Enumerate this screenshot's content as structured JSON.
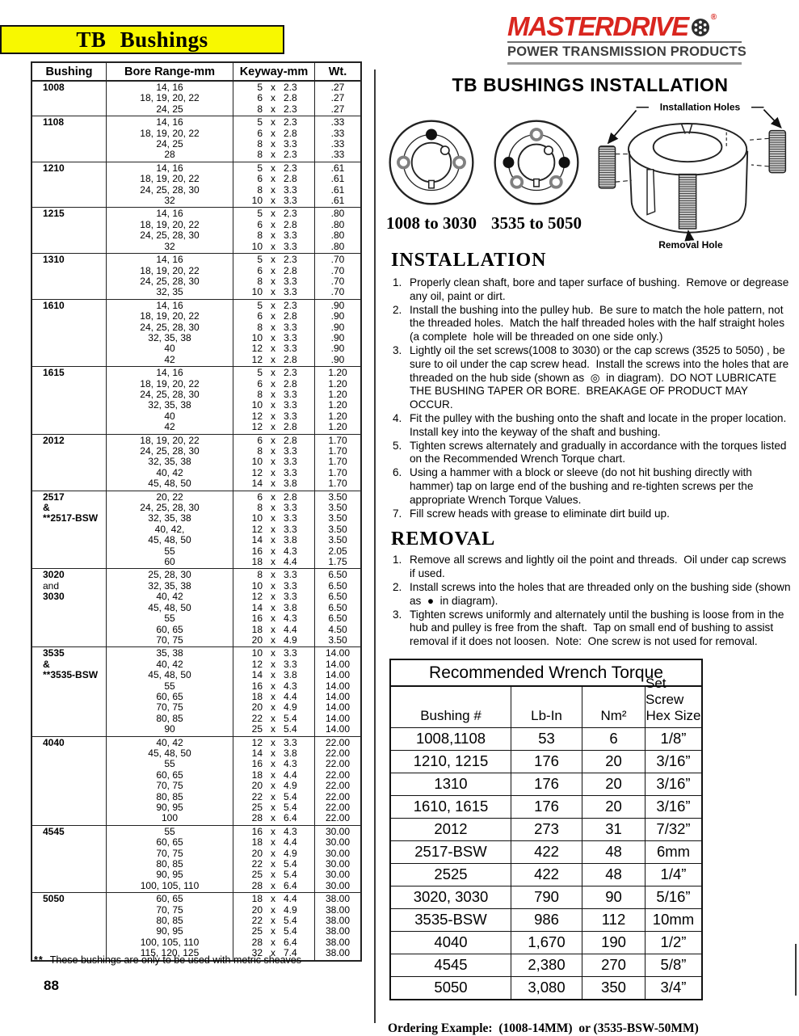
{
  "colors": {
    "banner_yellow": "#f8f800",
    "brand_red": "#d9261f",
    "brand_gray": "#3d3d3d"
  },
  "header": {
    "title": "TB Bushings",
    "brand": "MASTERDRIVE",
    "brand_reg": "®",
    "brand_sub": "POWER TRANSMISSION PRODUCTS"
  },
  "main_table": {
    "headers": [
      "Bushing",
      "Bore Range-mm",
      "Keyway-mm",
      "Wt."
    ],
    "keyway_separator": "x",
    "groups": [
      {
        "bushing": [
          "1008"
        ],
        "rows": [
          {
            "bore": "14,  16",
            "kw": "5",
            "kd": "2.3",
            "wt": ".27"
          },
          {
            "bore": "18, 19, 20, 22",
            "kw": "6",
            "kd": "2.8",
            "wt": ".27"
          },
          {
            "bore": "24, 25",
            "kw": "8",
            "kd": "2.3",
            "wt": ".27"
          }
        ]
      },
      {
        "bushing": [
          "1108"
        ],
        "rows": [
          {
            "bore": "14, 16",
            "kw": "5",
            "kd": "2.3",
            "wt": ".33"
          },
          {
            "bore": "18, 19, 20, 22",
            "kw": "6",
            "kd": "2.8",
            "wt": ".33"
          },
          {
            "bore": "24, 25",
            "kw": "8",
            "kd": "3.3",
            "wt": ".33"
          },
          {
            "bore": "28",
            "kw": "8",
            "kd": "2.3",
            "wt": ".33"
          }
        ]
      },
      {
        "bushing": [
          "1210"
        ],
        "rows": [
          {
            "bore": "14, 16",
            "kw": "5",
            "kd": "2.3",
            "wt": ".61"
          },
          {
            "bore": "18, 19, 20, 22",
            "kw": "6",
            "kd": "2.8",
            "wt": ".61"
          },
          {
            "bore": "24, 25, 28, 30",
            "kw": "8",
            "kd": "3.3",
            "wt": ".61"
          },
          {
            "bore": "32",
            "kw": "10",
            "kd": "3.3",
            "wt": ".61"
          }
        ]
      },
      {
        "bushing": [
          "1215"
        ],
        "rows": [
          {
            "bore": "14, 16",
            "kw": "5",
            "kd": "2.3",
            "wt": ".80"
          },
          {
            "bore": "18, 19, 20, 22",
            "kw": "6",
            "kd": "2.8",
            "wt": ".80"
          },
          {
            "bore": "24, 25, 28, 30",
            "kw": "8",
            "kd": "3.3",
            "wt": ".80"
          },
          {
            "bore": "32",
            "kw": "10",
            "kd": "3.3",
            "wt": ".80"
          }
        ]
      },
      {
        "bushing": [
          "1310"
        ],
        "rows": [
          {
            "bore": "14, 16",
            "kw": "5",
            "kd": "2.3",
            "wt": ".70"
          },
          {
            "bore": "18, 19, 20, 22",
            "kw": "6",
            "kd": "2.8",
            "wt": ".70"
          },
          {
            "bore": "24, 25, 28, 30",
            "kw": "8",
            "kd": "3.3",
            "wt": ".70"
          },
          {
            "bore": "32, 35",
            "kw": "10",
            "kd": "3.3",
            "wt": ".70"
          }
        ]
      },
      {
        "bushing": [
          "1610"
        ],
        "rows": [
          {
            "bore": "14, 16",
            "kw": "5",
            "kd": "2.3",
            "wt": ".90"
          },
          {
            "bore": "18, 19, 20, 22",
            "kw": "6",
            "kd": "2.8",
            "wt": ".90"
          },
          {
            "bore": "24, 25, 28, 30",
            "kw": "8",
            "kd": "3.3",
            "wt": ".90"
          },
          {
            "bore": "32, 35, 38",
            "kw": "10",
            "kd": "3.3",
            "wt": ".90"
          },
          {
            "bore": "40",
            "kw": "12",
            "kd": "3.3",
            "wt": ".90"
          },
          {
            "bore": "42",
            "kw": "12",
            "kd": "2.8",
            "wt": ".90"
          }
        ]
      },
      {
        "bushing": [
          "1615"
        ],
        "rows": [
          {
            "bore": "14, 16",
            "kw": "5",
            "kd": "2.3",
            "wt": "1.20"
          },
          {
            "bore": "18, 19, 20, 22",
            "kw": "6",
            "kd": "2.8",
            "wt": "1.20"
          },
          {
            "bore": "24, 25, 28, 30",
            "kw": "8",
            "kd": "3.3",
            "wt": "1.20"
          },
          {
            "bore": "32, 35, 38",
            "kw": "10",
            "kd": "3.3",
            "wt": "1.20"
          },
          {
            "bore": "40",
            "kw": "12",
            "kd": "3.3",
            "wt": "1.20"
          },
          {
            "bore": "42",
            "kw": "12",
            "kd": "2.8",
            "wt": "1.20"
          }
        ]
      },
      {
        "bushing": [
          "2012"
        ],
        "rows": [
          {
            "bore": "18, 19, 20, 22",
            "kw": "6",
            "kd": "2.8",
            "wt": "1.70"
          },
          {
            "bore": "24, 25, 28, 30",
            "kw": "8",
            "kd": "3.3",
            "wt": "1.70"
          },
          {
            "bore": "32, 35, 38",
            "kw": "10",
            "kd": "3.3",
            "wt": "1.70"
          },
          {
            "bore": "40, 42",
            "kw": "12",
            "kd": "3.3",
            "wt": "1.70"
          },
          {
            "bore": "45, 48, 50",
            "kw": "14",
            "kd": "3.8",
            "wt": "1.70"
          }
        ]
      },
      {
        "bushing": [
          "2517",
          "&",
          "**2517-BSW"
        ],
        "rows": [
          {
            "bore": "20, 22",
            "kw": "6",
            "kd": "2.8",
            "wt": "3.50"
          },
          {
            "bore": "24, 25, 28, 30",
            "kw": "8",
            "kd": "3.3",
            "wt": "3.50"
          },
          {
            "bore": "32, 35, 38",
            "kw": "10",
            "kd": "3.3",
            "wt": "3.50"
          },
          {
            "bore": "40, 42,",
            "kw": "12",
            "kd": "3.3",
            "wt": "3.50"
          },
          {
            "bore": "45, 48, 50",
            "kw": "14",
            "kd": "3.8",
            "wt": "3.50"
          },
          {
            "bore": "55",
            "kw": "16",
            "kd": "4.3",
            "wt": "2.05"
          },
          {
            "bore": "60",
            "kw": "18",
            "kd": "4.4",
            "wt": "1.75"
          }
        ]
      },
      {
        "bushing": [
          "3020",
          "and",
          "3030"
        ],
        "rows": [
          {
            "bore": "25, 28, 30",
            "kw": "8",
            "kd": "3.3",
            "wt": "6.50"
          },
          {
            "bore": "32, 35, 38",
            "kw": "10",
            "kd": "3.3",
            "wt": "6.50"
          },
          {
            "bore": "40, 42",
            "kw": "12",
            "kd": "3.3",
            "wt": "6.50"
          },
          {
            "bore": "45, 48, 50",
            "kw": "14",
            "kd": "3.8",
            "wt": "6.50"
          },
          {
            "bore": "55",
            "kw": "16",
            "kd": "4.3",
            "wt": "6.50"
          },
          {
            "bore": "60, 65",
            "kw": "18",
            "kd": "4.4",
            "wt": "4.50"
          },
          {
            "bore": "70, 75",
            "kw": "20",
            "kd": "4.9",
            "wt": "3.50"
          }
        ]
      },
      {
        "bushing": [
          "3535",
          "&",
          "**3535-BSW"
        ],
        "rows": [
          {
            "bore": "35, 38",
            "kw": "10",
            "kd": "3.3",
            "wt": "14.00"
          },
          {
            "bore": "40, 42",
            "kw": "12",
            "kd": "3.3",
            "wt": "14.00"
          },
          {
            "bore": "45, 48, 50",
            "kw": "14",
            "kd": "3.8",
            "wt": "14.00"
          },
          {
            "bore": "55",
            "kw": "16",
            "kd": "4.3",
            "wt": "14.00"
          },
          {
            "bore": "60, 65",
            "kw": "18",
            "kd": "4.4",
            "wt": "14.00"
          },
          {
            "bore": "70, 75",
            "kw": "20",
            "kd": "4.9",
            "wt": "14.00"
          },
          {
            "bore": "80, 85",
            "kw": "22",
            "kd": "5.4",
            "wt": "14.00"
          },
          {
            "bore": "90",
            "kw": "25",
            "kd": "5.4",
            "wt": "14.00"
          }
        ]
      },
      {
        "bushing": [
          "4040"
        ],
        "rows": [
          {
            "bore": "40, 42",
            "kw": "12",
            "kd": "3.3",
            "wt": "22.00"
          },
          {
            "bore": "45, 48, 50",
            "kw": "14",
            "kd": "3.8",
            "wt": "22.00"
          },
          {
            "bore": "55",
            "kw": "16",
            "kd": "4.3",
            "wt": "22.00"
          },
          {
            "bore": "60, 65",
            "kw": "18",
            "kd": "4.4",
            "wt": "22.00"
          },
          {
            "bore": "70, 75",
            "kw": "20",
            "kd": "4.9",
            "wt": "22.00"
          },
          {
            "bore": "80, 85",
            "kw": "22",
            "kd": "5.4",
            "wt": "22.00"
          },
          {
            "bore": "90, 95",
            "kw": "25",
            "kd": "5.4",
            "wt": "22.00"
          },
          {
            "bore": "100",
            "kw": "28",
            "kd": "6.4",
            "wt": "22.00"
          }
        ]
      },
      {
        "bushing": [
          "4545"
        ],
        "rows": [
          {
            "bore": "55",
            "kw": "16",
            "kd": "4.3",
            "wt": "30.00"
          },
          {
            "bore": "60, 65",
            "kw": "18",
            "kd": "4.4",
            "wt": "30.00"
          },
          {
            "bore": "70, 75",
            "kw": "20",
            "kd": "4.9",
            "wt": "30.00"
          },
          {
            "bore": "80, 85",
            "kw": "22",
            "kd": "5.4",
            "wt": "30.00"
          },
          {
            "bore": "90, 95",
            "kw": "25",
            "kd": "5.4",
            "wt": "30.00"
          },
          {
            "bore": "100, 105, 110",
            "kw": "28",
            "kd": "6.4",
            "wt": "30.00"
          }
        ]
      },
      {
        "bushing": [
          "5050"
        ],
        "rows": [
          {
            "bore": "60, 65",
            "kw": "18",
            "kd": "4.4",
            "wt": "38.00"
          },
          {
            "bore": "70, 75",
            "kw": "20",
            "kd": "4.9",
            "wt": "38.00"
          },
          {
            "bore": "80, 85",
            "kw": "22",
            "kd": "5.4",
            "wt": "38.00"
          },
          {
            "bore": "90, 95",
            "kw": "25",
            "kd": "5.4",
            "wt": "38.00"
          },
          {
            "bore": "100, 105, 110",
            "kw": "28",
            "kd": "6.4",
            "wt": "38.00"
          },
          {
            "bore": "115, 120, 125",
            "kw": "32",
            "kd": "7.4",
            "wt": "38.00"
          }
        ]
      }
    ]
  },
  "footnote": {
    "marker": "**",
    "text": "These bushings are only to be used with metric sheaves"
  },
  "page_number": "88",
  "installation_section": {
    "title": "TB BUSHINGS INSTALLATION",
    "diagram1_label": "1008 to 3030",
    "diagram2_label": "3535 to 5050",
    "installation_holes_label": "Installation Holes",
    "removal_hole_label": "Removal Hole",
    "installation_title": "INSTALLATION",
    "installation_steps": [
      "Properly clean shaft, bore and taper surface of bushing.  Remove or degrease any oil, paint or dirt.",
      "Install the bushing into the pulley hub.  Be sure to match the hole pattern, not the threaded holes.  Match the half threaded holes with the half straight holes (a complete  hole will be threaded on one side only.)",
      "Lightly oil the set screws(1008 to 3030) or the cap screws (3525 to 5050) , be sure to oil under the cap screw head.  Install the screws into the holes that are threaded on the hub side (shown as  ◎  in diagram).  DO NOT LUBRICATE THE BUSHING TAPER OR BORE.  BREAKAGE OF PRODUCT MAY OCCUR.",
      "Fit the pulley with the bushing onto the shaft and locate in the proper location.  Install key into the keyway of the shaft and bushing.",
      "Tighten screws alternately and gradually in accordance with the torques listed on the Recommended Wrench Torque chart.",
      "Using a hammer with a block or sleeve (do not hit bushing directly with hammer) tap on large end of the bushing and re-tighten screws per the appropriate Wrench Torque Values.",
      "Fill screw heads with grease to eliminate dirt build up."
    ],
    "removal_title": "REMOVAL",
    "removal_steps": [
      "Remove all screws and lightly oil the point and threads.  Oil under cap screws if used.",
      "Install screws into the holes that are threaded only on the bushing side (shown as  ●  in diagram).",
      "Tighten screws uniformly and alternately until the bushing is loose from in the hub and pulley is free from the shaft.  Tap on small end of bushing to assist removal if it does not loosen.  Note:  One screw is not used for removal."
    ]
  },
  "torque_table": {
    "title": "Recommended Wrench Torque",
    "headers": {
      "col1": "Bushing #",
      "col2": "Lb-In",
      "col3": "Nm²",
      "col4a": "Set Screw",
      "col4b": "Hex Size"
    },
    "rows": [
      [
        "1008,1108",
        "53",
        "6",
        "1/8”"
      ],
      [
        "1210, 1215",
        "176",
        "20",
        "3/16”"
      ],
      [
        "1310",
        "176",
        "20",
        "3/16”"
      ],
      [
        "1610, 1615",
        "176",
        "20",
        "3/16”"
      ],
      [
        "2012",
        "273",
        "31",
        "7/32”"
      ],
      [
        "2517-BSW",
        "422",
        "48",
        "6mm"
      ],
      [
        "2525",
        "422",
        "48",
        "1/4”"
      ],
      [
        "3020, 3030",
        "790",
        "90",
        "5/16”"
      ],
      [
        "3535-BSW",
        "986",
        "112",
        "10mm"
      ],
      [
        "4040",
        "1,670",
        "190",
        "1/2”"
      ],
      [
        "4545",
        "2,380",
        "270",
        "5/8”"
      ],
      [
        "5050",
        "3,080",
        "350",
        "3/4”"
      ]
    ]
  },
  "ordering_example": "Ordering Example:  (1008-14MM)  or (3535-BSW-50MM)"
}
